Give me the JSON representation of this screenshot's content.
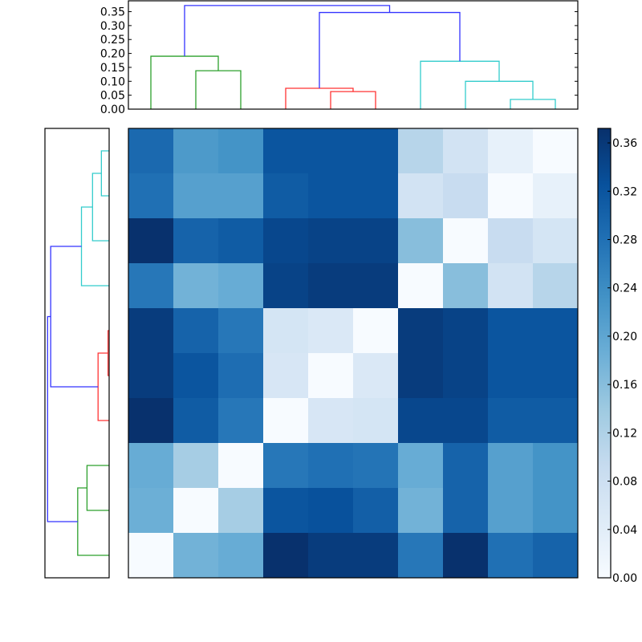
{
  "chart_data": {
    "type": "heatmap",
    "title": "",
    "description": "Clustered heatmap (distance matrix) with hierarchical-clustering dendrograms on top and left, and a Blues colorbar on the right.",
    "colormap": "Blues",
    "vmin": 0.0,
    "vmax": 0.372,
    "leaf_order": [
      0,
      1,
      2,
      3,
      4,
      5,
      6,
      7,
      8,
      9
    ],
    "xticks_visible": false,
    "yticks_visible": false,
    "matrix": [
      [
        0.29,
        0.22,
        0.23,
        0.32,
        0.32,
        0.32,
        0.11,
        0.07,
        0.03,
        0.0
      ],
      [
        0.28,
        0.21,
        0.21,
        0.31,
        0.32,
        0.32,
        0.07,
        0.09,
        0.0,
        0.03
      ],
      [
        0.37,
        0.3,
        0.31,
        0.34,
        0.345,
        0.345,
        0.16,
        0.0,
        0.09,
        0.065
      ],
      [
        0.27,
        0.18,
        0.19,
        0.345,
        0.355,
        0.355,
        0.0,
        0.16,
        0.07,
        0.11
      ],
      [
        0.355,
        0.3,
        0.27,
        0.065,
        0.055,
        0.0,
        0.355,
        0.345,
        0.32,
        0.32
      ],
      [
        0.355,
        0.32,
        0.285,
        0.06,
        0.0,
        0.055,
        0.355,
        0.345,
        0.32,
        0.32
      ],
      [
        0.37,
        0.31,
        0.27,
        0.0,
        0.06,
        0.065,
        0.34,
        0.34,
        0.31,
        0.31
      ],
      [
        0.19,
        0.13,
        0.0,
        0.27,
        0.28,
        0.275,
        0.19,
        0.3,
        0.21,
        0.23
      ],
      [
        0.185,
        0.0,
        0.13,
        0.32,
        0.325,
        0.305,
        0.18,
        0.3,
        0.21,
        0.23
      ],
      [
        0.0,
        0.18,
        0.19,
        0.37,
        0.355,
        0.355,
        0.27,
        0.37,
        0.28,
        0.3
      ]
    ],
    "colorbar": {
      "ticks": [
        "0.00",
        "0.04",
        "0.08",
        "0.12",
        "0.16",
        "0.20",
        "0.24",
        "0.28",
        "0.32",
        "0.36"
      ],
      "position": "right"
    },
    "top_dendrogram": {
      "ylabel": "",
      "yticks": [
        "0.00",
        "0.05",
        "0.10",
        "0.15",
        "0.20",
        "0.25",
        "0.30",
        "0.35"
      ],
      "ylim": [
        0.0,
        0.389
      ],
      "clusters": [
        {
          "color": "#2ca02c",
          "name": "green",
          "leaves": [
            0,
            1,
            2
          ]
        },
        {
          "color": "#ff3333",
          "name": "red",
          "leaves": [
            3,
            4,
            5
          ]
        },
        {
          "color": "#33cccc",
          "name": "cyan",
          "leaves": [
            6,
            7,
            8,
            9
          ]
        }
      ],
      "links": [
        {
          "left": [
            1
          ],
          "right": [
            2
          ],
          "height": 0.138,
          "color": "#2ca02c"
        },
        {
          "left": [
            0
          ],
          "right": [
            1,
            2
          ],
          "height": 0.19,
          "color": "#2ca02c"
        },
        {
          "left": [
            4
          ],
          "right": [
            5
          ],
          "height": 0.063,
          "color": "#ff3333"
        },
        {
          "left": [
            3
          ],
          "right": [
            4,
            5
          ],
          "height": 0.075,
          "color": "#ff3333"
        },
        {
          "left": [
            8
          ],
          "right": [
            9
          ],
          "height": 0.035,
          "color": "#33cccc"
        },
        {
          "left": [
            7
          ],
          "right": [
            8,
            9
          ],
          "height": 0.1,
          "color": "#33cccc"
        },
        {
          "left": [
            6
          ],
          "right": [
            7,
            8,
            9
          ],
          "height": 0.172,
          "color": "#33cccc"
        },
        {
          "left": [
            3,
            4,
            5
          ],
          "right": [
            6,
            7,
            8,
            9
          ],
          "height": 0.347,
          "color": "#3333ff"
        },
        {
          "left": [
            0,
            1,
            2
          ],
          "right": [
            3,
            4,
            5,
            6,
            7,
            8,
            9
          ],
          "height": 0.372,
          "color": "#3333ff"
        }
      ]
    },
    "left_dendrogram": {
      "orientation": "left",
      "clusters": [
        {
          "color": "#33cccc",
          "name": "cyan",
          "rows": [
            0,
            1,
            2,
            3
          ]
        },
        {
          "color": "#ff3333",
          "name": "red",
          "rows": [
            4,
            5,
            6
          ]
        },
        {
          "color": "#2ca02c",
          "name": "green",
          "rows": [
            7,
            8,
            9
          ]
        }
      ]
    }
  },
  "colors": {
    "blue_link": "#3333ff",
    "green_link": "#2ca02c",
    "red_link": "#ff3333",
    "cyan_link": "#33cccc",
    "frame": "#000000"
  }
}
